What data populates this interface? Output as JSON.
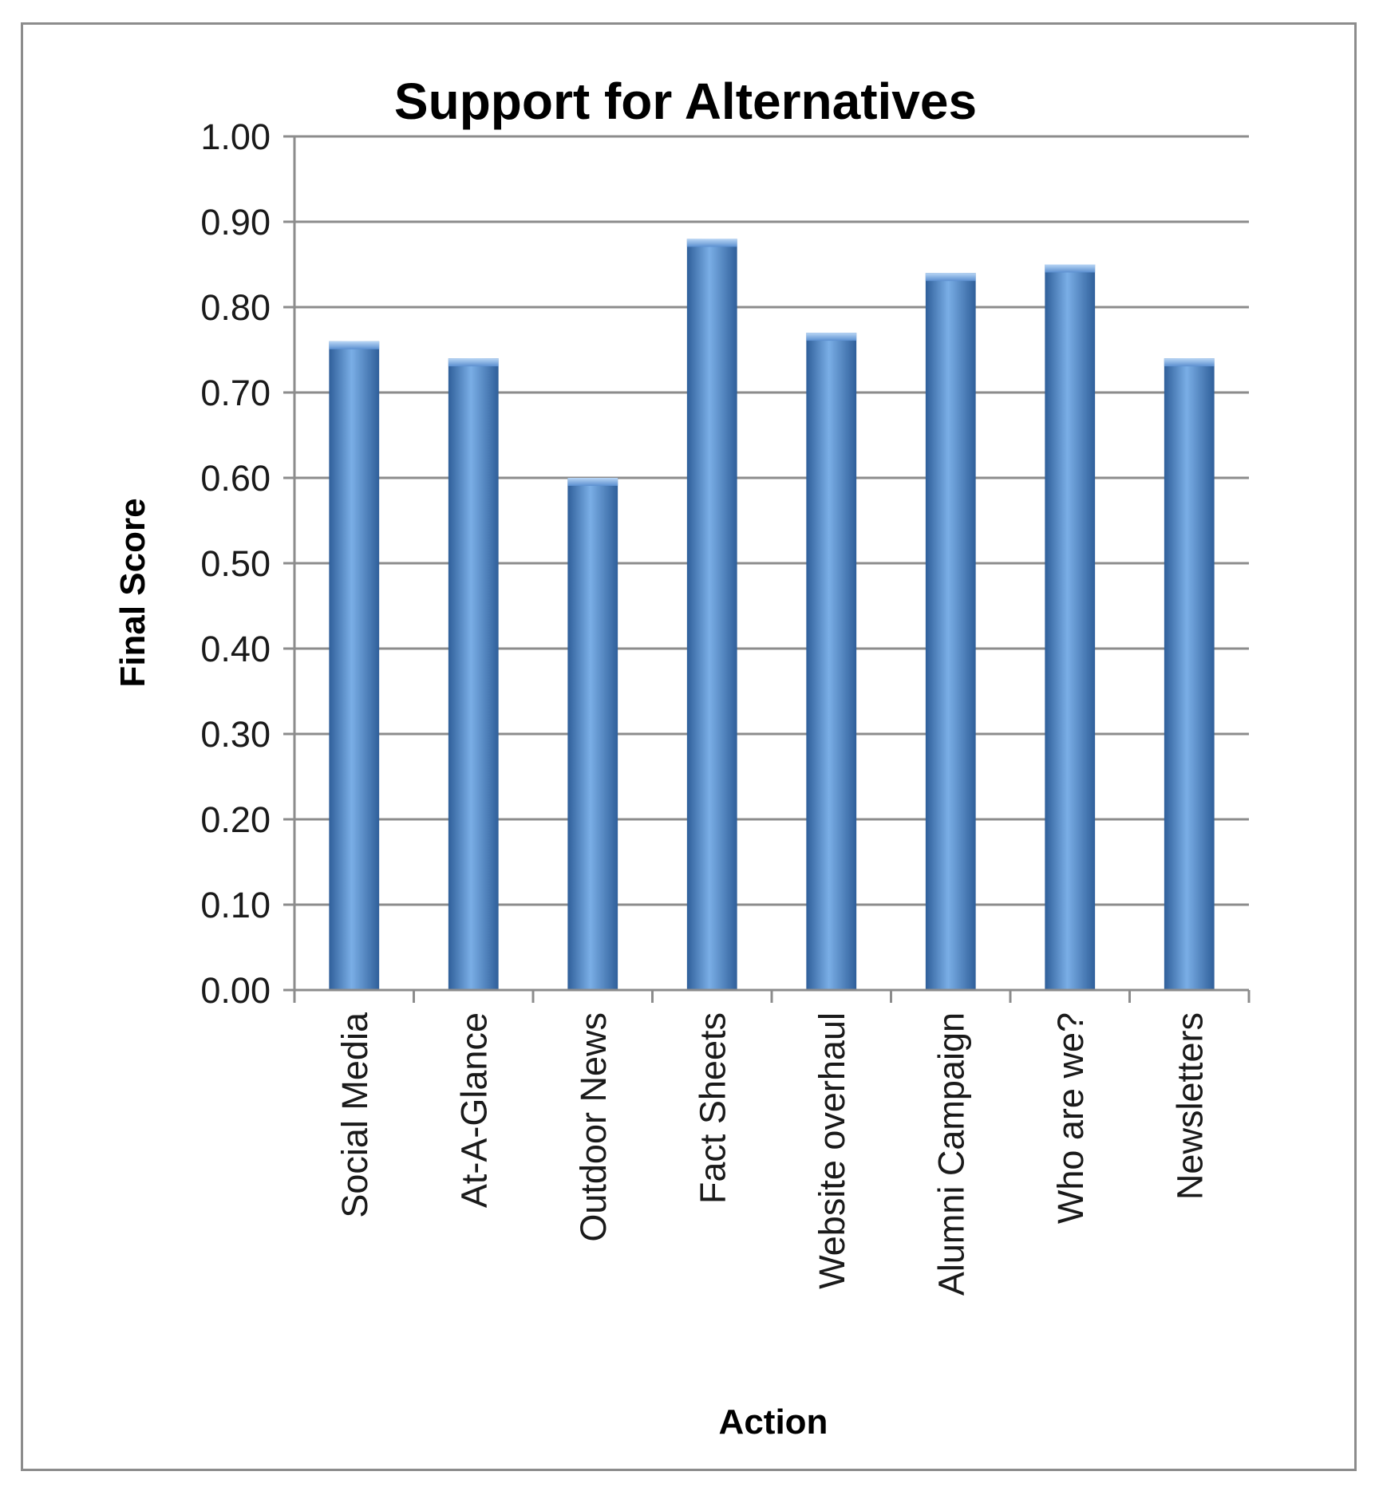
{
  "chart_data": {
    "type": "bar",
    "title": "Support for Alternatives",
    "xlabel": "Action",
    "ylabel": "Final Score",
    "categories": [
      "Social Media",
      "At-A-Glance",
      "Outdoor News",
      "Fact Sheets",
      "Website overhaul",
      "Alumni Campaign",
      "Who are we?",
      "Newsletters"
    ],
    "values": [
      0.76,
      0.74,
      0.6,
      0.88,
      0.77,
      0.84,
      0.85,
      0.74
    ],
    "ylim": [
      0,
      1.0
    ],
    "yticks": [
      "0.00",
      "0.10",
      "0.20",
      "0.30",
      "0.40",
      "0.50",
      "0.60",
      "0.70",
      "0.80",
      "0.90",
      "1.00"
    ],
    "grid": true,
    "legend": "none",
    "colors": {
      "bar": "#4a7ebb",
      "bar_light": "#7aaee6",
      "bar_dark": "#2f5f9a",
      "grid": "#8c8c8c",
      "axis": "#8c8c8c"
    }
  }
}
